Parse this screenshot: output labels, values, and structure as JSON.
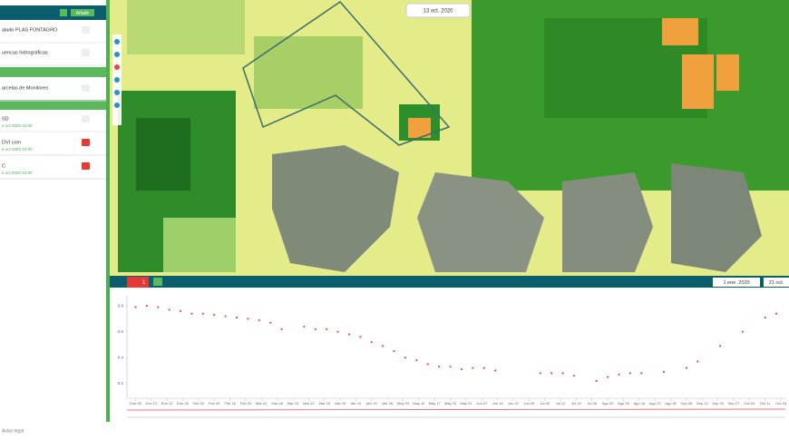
{
  "sidebar": {
    "add_button": "Añadir",
    "layers": [
      {
        "name": "alado PLAS FONTAGRO"
      },
      {
        "name": "uencas hidrográficas"
      },
      {
        "name": "arcelas de Monitoreo"
      },
      {
        "name": "SD",
        "date": "e oct 2020 12:00"
      },
      {
        "name": "DVI com",
        "date": "e oct 2020 12:00"
      },
      {
        "name": "C",
        "date": "e oct 2020 12:00"
      }
    ]
  },
  "map": {
    "date": "13 oct. 2020"
  },
  "panel": {
    "tab": "1",
    "start_date": "1 ene. 2020",
    "end_date": "21 oct.",
    "chart": {
      "type": "scatter",
      "color": "#e8474b",
      "x": [
        5,
        10,
        15,
        20,
        25,
        30,
        35,
        40,
        45,
        50,
        55,
        60,
        65,
        70,
        80,
        85,
        90,
        95,
        100,
        105,
        110,
        115,
        120,
        125,
        130,
        135,
        140,
        145,
        150,
        155,
        160,
        165,
        185,
        190,
        195,
        200,
        210,
        215,
        220,
        225,
        230,
        240,
        250,
        255,
        265,
        275,
        285,
        290
      ],
      "values": [
        0.79,
        0.8,
        0.79,
        0.77,
        0.76,
        0.74,
        0.74,
        0.73,
        0.72,
        0.71,
        0.7,
        0.69,
        0.67,
        0.62,
        0.64,
        0.62,
        0.62,
        0.6,
        0.58,
        0.56,
        0.52,
        0.49,
        0.45,
        0.4,
        0.38,
        0.35,
        0.33,
        0.33,
        0.31,
        0.32,
        0.32,
        0.3,
        0.28,
        0.28,
        0.28,
        0.26,
        0.22,
        0.25,
        0.27,
        0.28,
        0.28,
        0.29,
        0.32,
        0.37,
        0.49,
        0.6,
        0.71,
        0.74
      ],
      "xlim": [
        2,
        294
      ],
      "ylim": [
        0.1,
        0.85
      ],
      "yticks": [
        0.8,
        0.6,
        0.4,
        0.2
      ],
      "xticks": [
        {
          "value": 5,
          "label": "Ene 05"
        },
        {
          "value": 12,
          "label": "Ene 12"
        },
        {
          "value": 19,
          "label": "Ene 19"
        },
        {
          "value": 26,
          "label": "Ene 26"
        },
        {
          "value": 33,
          "label": "Feb 02"
        },
        {
          "value": 40,
          "label": "Feb 09"
        },
        {
          "value": 47,
          "label": "Feb 16"
        },
        {
          "value": 54,
          "label": "Feb 23"
        },
        {
          "value": 61,
          "label": "Mar 01"
        },
        {
          "value": 68,
          "label": "Mar 08"
        },
        {
          "value": 75,
          "label": "Mar 15"
        },
        {
          "value": 82,
          "label": "Mar 22"
        },
        {
          "value": 89,
          "label": "Mar 29"
        },
        {
          "value": 96,
          "label": "Abr 05"
        },
        {
          "value": 103,
          "label": "Abr 12"
        },
        {
          "value": 110,
          "label": "Abr 19"
        },
        {
          "value": 117,
          "label": "Abr 26"
        },
        {
          "value": 124,
          "label": "May 03"
        },
        {
          "value": 131,
          "label": "May 10"
        },
        {
          "value": 138,
          "label": "May 17"
        },
        {
          "value": 145,
          "label": "May 24"
        },
        {
          "value": 152,
          "label": "May 31"
        },
        {
          "value": 159,
          "label": "Jun 07"
        },
        {
          "value": 166,
          "label": "Jun 14"
        },
        {
          "value": 173,
          "label": "Jun 21"
        },
        {
          "value": 180,
          "label": "Jun 28"
        },
        {
          "value": 187,
          "label": "Jul 05"
        },
        {
          "value": 194,
          "label": "Jul 12"
        },
        {
          "value": 201,
          "label": "Jul 19"
        },
        {
          "value": 208,
          "label": "Jul 26"
        },
        {
          "value": 215,
          "label": "Ago 02"
        },
        {
          "value": 222,
          "label": "Ago 09"
        },
        {
          "value": 229,
          "label": "Ago 16"
        },
        {
          "value": 236,
          "label": "Ago 23"
        },
        {
          "value": 243,
          "label": "Ago 30"
        },
        {
          "value": 250,
          "label": "Sep 06"
        },
        {
          "value": 257,
          "label": "Sep 13"
        },
        {
          "value": 264,
          "label": "Sep 20"
        },
        {
          "value": 271,
          "label": "Sep 27"
        },
        {
          "value": 278,
          "label": "Oct 04"
        },
        {
          "value": 285,
          "label": "Oct 11"
        },
        {
          "value": 292,
          "label": "Oct 18"
        }
      ]
    }
  },
  "footer": {
    "legal": "Aviso legal"
  }
}
